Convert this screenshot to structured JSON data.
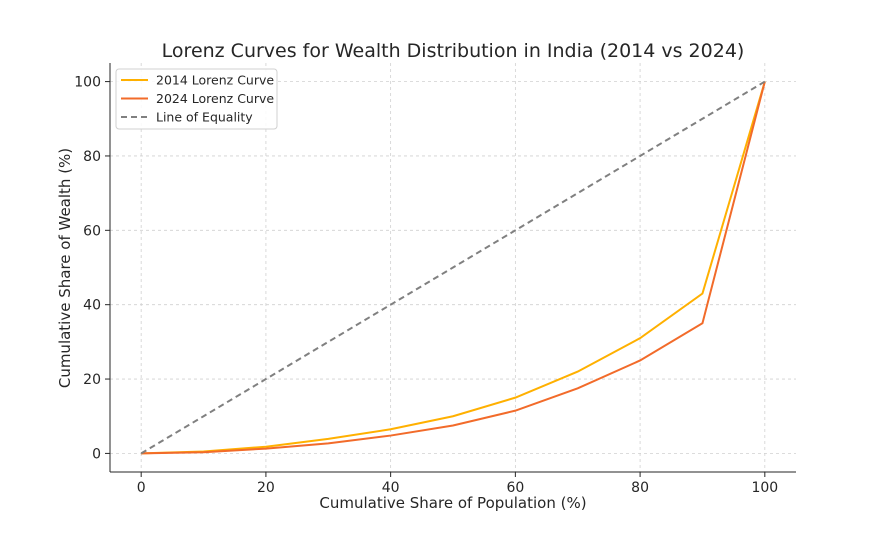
{
  "chart_data": {
    "type": "line",
    "title": "Lorenz Curves for Wealth Distribution in India (2014 vs 2024)",
    "xlabel": "Cumulative Share of Population (%)",
    "ylabel": "Cumulative Share of Wealth (%)",
    "xlim": [
      -5,
      105
    ],
    "ylim": [
      -5,
      105
    ],
    "xticks": [
      0,
      20,
      40,
      60,
      80,
      100
    ],
    "yticks": [
      0,
      20,
      40,
      60,
      80,
      100
    ],
    "grid": true,
    "legend_position": "top-left",
    "x": [
      0,
      10,
      20,
      30,
      40,
      50,
      60,
      70,
      80,
      90,
      100
    ],
    "series": [
      {
        "name": "2014 Lorenz Curve",
        "color": "#FFB000",
        "dash": false,
        "values": [
          0,
          0.5,
          1.8,
          3.9,
          6.5,
          10,
          15,
          22,
          31,
          43,
          100
        ]
      },
      {
        "name": "2024 Lorenz Curve",
        "color": "#F26B2A",
        "dash": false,
        "values": [
          0,
          0.3,
          1.3,
          2.7,
          4.8,
          7.5,
          11.5,
          17.5,
          25,
          35,
          100
        ]
      },
      {
        "name": "Line of Equality",
        "color": "#808080",
        "dash": true,
        "values": [
          0,
          10,
          20,
          30,
          40,
          50,
          60,
          70,
          80,
          90,
          100
        ]
      }
    ]
  }
}
